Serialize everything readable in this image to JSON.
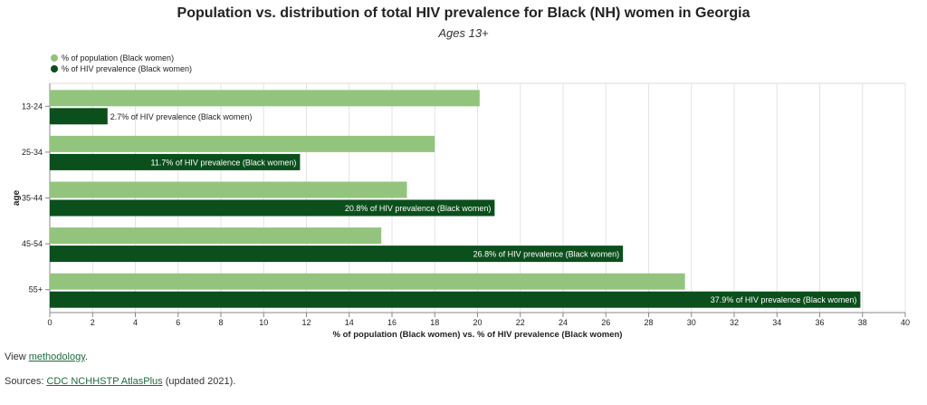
{
  "title": "Population vs. distribution of total HIV prevalence for Black (NH) women in Georgia",
  "subtitle": "Ages 13+",
  "legend": [
    {
      "label": "% of population (Black women)",
      "color": "#93c47d"
    },
    {
      "label": "% of HIV prevalence (Black women)",
      "color": "#0b4f1c"
    }
  ],
  "footer": {
    "view_prefix": "View ",
    "view_link": "methodology",
    "view_suffix": ".",
    "sources_prefix": "Sources: ",
    "sources_link": "CDC NCHHSTP AtlasPlus",
    "sources_suffix": " (updated 2021)."
  },
  "chart_data": {
    "type": "bar",
    "orientation": "horizontal",
    "categories": [
      "13-24",
      "25-34",
      "35-44",
      "45-54",
      "55+"
    ],
    "series": [
      {
        "name": "% of population (Black women)",
        "color": "#93c47d",
        "values": [
          20.1,
          18.0,
          16.7,
          15.5,
          29.7
        ]
      },
      {
        "name": "% of HIV prevalence (Black women)",
        "color": "#0b4f1c",
        "values": [
          2.7,
          11.7,
          20.8,
          26.8,
          37.9
        ],
        "labels": [
          "2.7% of HIV prevalence (Black women)",
          "11.7% of HIV prevalence (Black women)",
          "20.8% of HIV prevalence (Black women)",
          "26.8% of HIV prevalence (Black women)",
          "37.9% of HIV prevalence (Black women)"
        ]
      }
    ],
    "xlabel": "% of population (Black women) vs. % of HIV prevalence (Black women)",
    "ylabel": "age",
    "xlim": [
      0,
      40
    ],
    "xticks": [
      0,
      2,
      4,
      6,
      8,
      10,
      12,
      14,
      16,
      18,
      20,
      22,
      24,
      26,
      28,
      30,
      32,
      34,
      36,
      38,
      40
    ],
    "grid": true,
    "legend_position": "top-left"
  }
}
